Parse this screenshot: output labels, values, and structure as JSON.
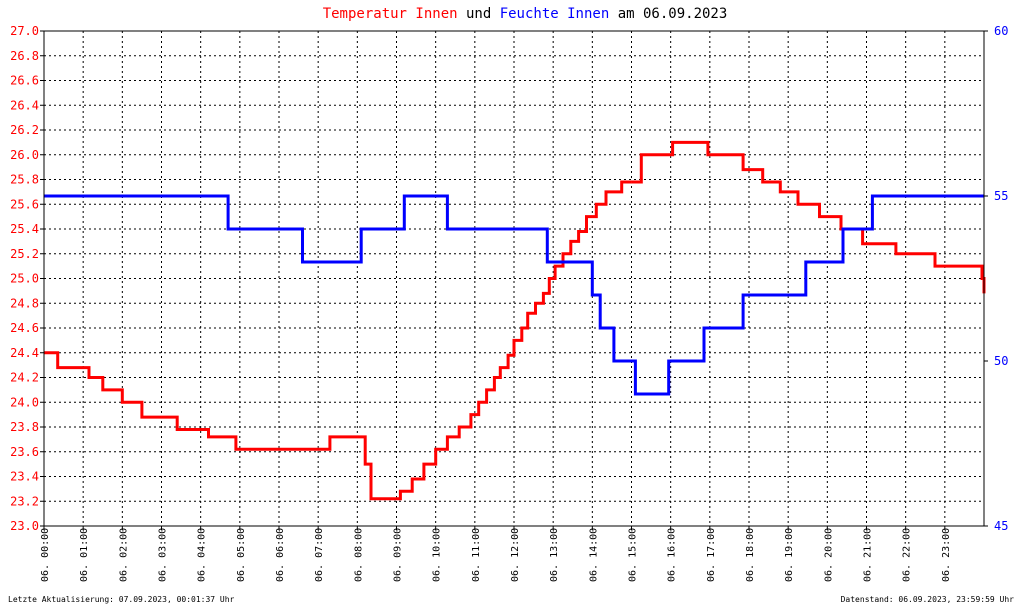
{
  "colors": {
    "temperature": "#ff0000",
    "humidity": "#0000ff",
    "title_default": "#000000",
    "grid": "#000000",
    "background": "#ffffff"
  },
  "chart_data": {
    "type": "line",
    "title_parts": [
      {
        "text": "Temperatur Innen",
        "color": "#ff0000"
      },
      {
        "text": " und ",
        "color": "#000000"
      },
      {
        "text": "Feuchte Innen",
        "color": "#0000ff"
      },
      {
        "text": " am 06.09.2023",
        "color": "#000000"
      }
    ],
    "xlim": [
      0,
      24
    ],
    "x_tick_labels": [
      "06. 00:00",
      "06. 01:00",
      "06. 02:00",
      "06. 03:00",
      "06. 04:00",
      "06. 05:00",
      "06. 06:00",
      "06. 07:00",
      "06. 08:00",
      "06. 09:00",
      "06. 10:00",
      "06. 11:00",
      "06. 12:00",
      "06. 13:00",
      "06. 14:00",
      "06. 15:00",
      "06. 16:00",
      "06. 17:00",
      "06. 18:00",
      "06. 19:00",
      "06. 20:00",
      "06. 21:00",
      "06. 22:00",
      "06. 23:00"
    ],
    "y_left": {
      "lim": [
        23.0,
        27.0
      ],
      "step": 0.2,
      "tick_labels": [
        "23.0",
        "23.2",
        "23.4",
        "23.6",
        "23.8",
        "24.0",
        "24.2",
        "24.4",
        "24.6",
        "24.8",
        "25.0",
        "25.2",
        "25.4",
        "25.6",
        "25.8",
        "26.0",
        "26.2",
        "26.4",
        "26.6",
        "26.8",
        "27.0"
      ]
    },
    "y_right": {
      "lim": [
        45,
        60
      ],
      "tick_labels": [
        "45",
        "50",
        "55",
        "60"
      ]
    },
    "grid": true,
    "series": [
      {
        "name": "Temperatur Innen",
        "axis": "left",
        "color": "#ff0000",
        "step": true,
        "x": [
          0.0,
          0.35,
          1.15,
          1.5,
          2.0,
          2.5,
          3.4,
          4.2,
          4.9,
          6.0,
          7.3,
          8.0,
          8.2,
          8.35,
          9.1,
          9.4,
          9.7,
          10.0,
          10.3,
          10.6,
          10.9,
          11.1,
          11.3,
          11.5,
          11.65,
          11.85,
          12.0,
          12.2,
          12.35,
          12.55,
          12.75,
          12.9,
          13.05,
          13.25,
          13.45,
          13.65,
          13.85,
          14.1,
          14.35,
          14.75,
          15.25,
          16.05,
          16.95,
          17.85,
          18.35,
          18.8,
          19.25,
          19.8,
          20.35,
          20.9,
          21.75,
          22.75,
          23.95,
          24.0
        ],
        "y": [
          24.4,
          24.28,
          24.2,
          24.1,
          24.0,
          23.88,
          23.78,
          23.72,
          23.62,
          23.62,
          23.72,
          23.72,
          23.5,
          23.22,
          23.28,
          23.38,
          23.5,
          23.62,
          23.72,
          23.8,
          23.9,
          24.0,
          24.1,
          24.2,
          24.28,
          24.38,
          24.5,
          24.6,
          24.72,
          24.8,
          24.88,
          25.0,
          25.1,
          25.2,
          25.3,
          25.38,
          25.5,
          25.6,
          25.7,
          25.78,
          26.0,
          26.1,
          26.0,
          25.88,
          25.78,
          25.7,
          25.6,
          25.5,
          25.4,
          25.28,
          25.2,
          25.1,
          25.0,
          24.88
        ]
      },
      {
        "name": "Feuchte Innen",
        "axis": "right",
        "color": "#0000ff",
        "step": true,
        "x": [
          0.0,
          4.7,
          6.6,
          8.1,
          9.2,
          10.3,
          12.85,
          14.0,
          14.2,
          14.55,
          15.1,
          15.95,
          16.85,
          17.85,
          19.45,
          20.4,
          21.15,
          24.0
        ],
        "y": [
          55.0,
          54.0,
          53.0,
          54.0,
          55.0,
          54.0,
          53.0,
          52.0,
          51.0,
          50.0,
          49.0,
          50.0,
          51.0,
          52.0,
          53.0,
          54.0,
          55.0,
          55.0
        ]
      }
    ]
  },
  "footer": {
    "last_update": "Letzte Aktualisierung: 07.09.2023, 00:01:37 Uhr",
    "data_status": "Datenstand: 06.09.2023, 23:59:59 Uhr"
  }
}
